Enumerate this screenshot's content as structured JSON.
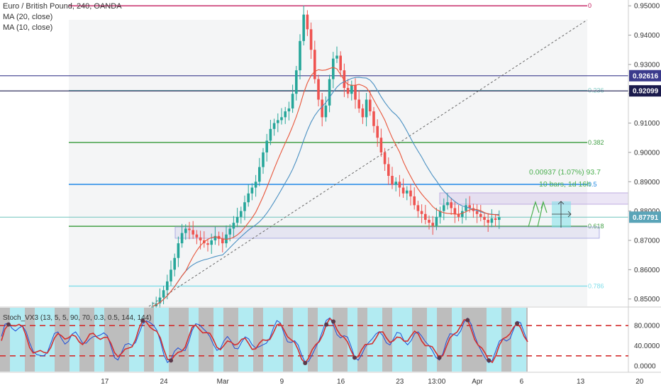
{
  "legend": {
    "title": "Euro / British Pound, 240, OANDA",
    "ma20": "MA (20, close)",
    "ma10": "MA (10, close)"
  },
  "oscillator": {
    "label": "Stoch_VX3 (13, 5, 5, 90, 70, 0.3, 0.5, 144, 144)",
    "ticks": [
      "80.0000",
      "40.0000",
      "0.0000"
    ],
    "tick_values": [
      80,
      40,
      0
    ],
    "upper_level": 80,
    "lower_level": 20
  },
  "colors": {
    "up": "#26a69a",
    "down": "#ef5350",
    "ma20": "#4a90c2",
    "ma10": "#e8553a",
    "fib_0": "#c2185b",
    "fib_236": "#80cbc4",
    "fib_382": "#43a047",
    "fib_5": "#1e88e5",
    "fib_618": "#43a047",
    "fib_786": "#80deea",
    "stoch_red": "#d32f2f",
    "stoch_blue": "#1e4fd8",
    "grey_band": "#bdbdbd",
    "cyan_band": "#b2ebf2"
  },
  "chart_data": {
    "type": "candlestick",
    "ylim": [
      0.8475,
      0.9515
    ],
    "y_ticks": [
      "0.95000",
      "0.94000",
      "0.93000",
      "0.92000",
      "0.91000",
      "0.90000",
      "0.89000",
      "0.88000",
      "0.87000",
      "0.86000",
      "0.85000"
    ],
    "y_tick_values": [
      0.95,
      0.94,
      0.93,
      0.92,
      0.91,
      0.9,
      0.89,
      0.88,
      0.87,
      0.86,
      0.85
    ],
    "x_ticks": [
      {
        "label": "17",
        "bar": 14
      },
      {
        "label": "24",
        "bar": 30
      },
      {
        "label": "Mar",
        "bar": 46
      },
      {
        "label": "9",
        "bar": 62
      },
      {
        "label": "16",
        "bar": 78
      },
      {
        "label": "23",
        "bar": 94
      },
      {
        "label": "13:00",
        "bar": 104
      },
      {
        "label": "Apr",
        "bar": 115
      },
      {
        "label": "6",
        "bar": 127
      },
      {
        "label": "13",
        "bar": 143
      },
      {
        "label": "20",
        "bar": 159
      }
    ],
    "price_tags": [
      {
        "label": "0.92616",
        "value": 0.92616,
        "color": "#3a3a8c"
      },
      {
        "label": "0.92099",
        "value": 0.92099,
        "color": "#1b1b4d"
      },
      {
        "label": "0.87791",
        "value": 0.87791,
        "color": "#5aa4b8"
      }
    ],
    "horizontal_lines": [
      {
        "value": 0.92616,
        "color": "#3a3a8c"
      },
      {
        "value": 0.92099,
        "color": "#1b1b4d"
      },
      {
        "value": 0.87791,
        "color": "#80cbc4"
      }
    ],
    "fib_levels": [
      {
        "label": "0",
        "value": 0.95
      },
      {
        "label": "0.236",
        "value": 0.9211
      },
      {
        "label": "0.382",
        "value": 0.9034
      },
      {
        "label": "0.5",
        "value": 0.8891
      },
      {
        "label": "0.618",
        "value": 0.8748
      },
      {
        "label": "0.786",
        "value": 0.8544
      }
    ],
    "measure": {
      "line1": "0.00937 (1.07%) 93.7",
      "line2": "10 bars, 1d 16h"
    },
    "closes": [
      0.8475,
      0.8485,
      0.8505,
      0.853,
      0.856,
      0.86,
      0.864,
      0.869,
      0.8725,
      0.874,
      0.8735,
      0.872,
      0.871,
      0.87,
      0.869,
      0.8685,
      0.87,
      0.8715,
      0.8705,
      0.869,
      0.872,
      0.874,
      0.876,
      0.878,
      0.88,
      0.883,
      0.886,
      0.888,
      0.89,
      0.895,
      0.9,
      0.904,
      0.908,
      0.91,
      0.911,
      0.912,
      0.914,
      0.915,
      0.92,
      0.928,
      0.938,
      0.947,
      0.942,
      0.935,
      0.925,
      0.918,
      0.912,
      0.916,
      0.925,
      0.932,
      0.933,
      0.928,
      0.922,
      0.92,
      0.923,
      0.918,
      0.915,
      0.912,
      0.918,
      0.914,
      0.909,
      0.905,
      0.9,
      0.896,
      0.892,
      0.889,
      0.89,
      0.888,
      0.886,
      0.887,
      0.885,
      0.882,
      0.88,
      0.879,
      0.877,
      0.876,
      0.875,
      0.878,
      0.88,
      0.882,
      0.883,
      0.881,
      0.879,
      0.878,
      0.88,
      0.882,
      0.881,
      0.88,
      0.879,
      0.878,
      0.877,
      0.876,
      0.8775,
      0.877,
      0.8779
    ]
  }
}
